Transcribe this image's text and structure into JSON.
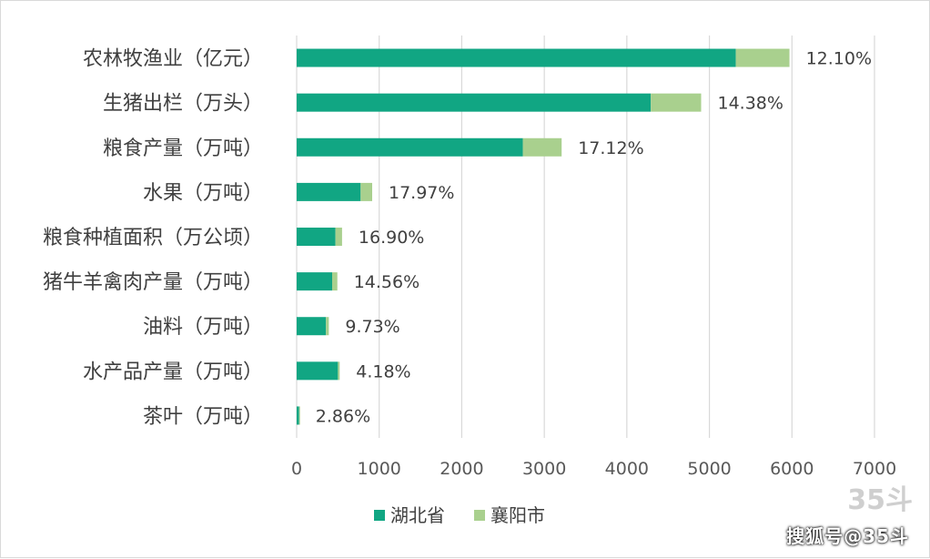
{
  "chart_data": {
    "type": "bar",
    "orientation": "horizontal",
    "stacked": true,
    "categories": [
      "农林牧渔业（亿元）",
      "生猪出栏（万头）",
      "粮食产量（万吨）",
      "水果（万吨）",
      "粮食种植面积（万公顷）",
      "猪牛羊禽肉产量（万吨）",
      "油料（万吨）",
      "水产品产量（万吨）",
      "茶叶（万吨）"
    ],
    "series": [
      {
        "name": "湖北省",
        "values": [
          5320,
          4290,
          2740,
          775,
          470,
          430,
          355,
          500,
          30
        ]
      },
      {
        "name": "襄阳市",
        "values": [
          650,
          610,
          470,
          140,
          80,
          63,
          35,
          21,
          1
        ]
      }
    ],
    "data_labels": [
      "12.10%",
      "14.38%",
      "17.12%",
      "17.97%",
      "16.90%",
      "14.56%",
      "9.73%",
      "4.18%",
      "2.86%"
    ],
    "xlim": [
      0,
      7000
    ],
    "xticks": [
      "0",
      "1000",
      "2000",
      "3000",
      "4000",
      "5000",
      "6000",
      "7000"
    ],
    "grid": true,
    "legend_position": "bottom",
    "colors": {
      "湖北省": "#11A683",
      "襄阳市": "#A9D08E"
    }
  },
  "watermark": {
    "text": "搜狐号@35斗",
    "logo": "35斗"
  }
}
